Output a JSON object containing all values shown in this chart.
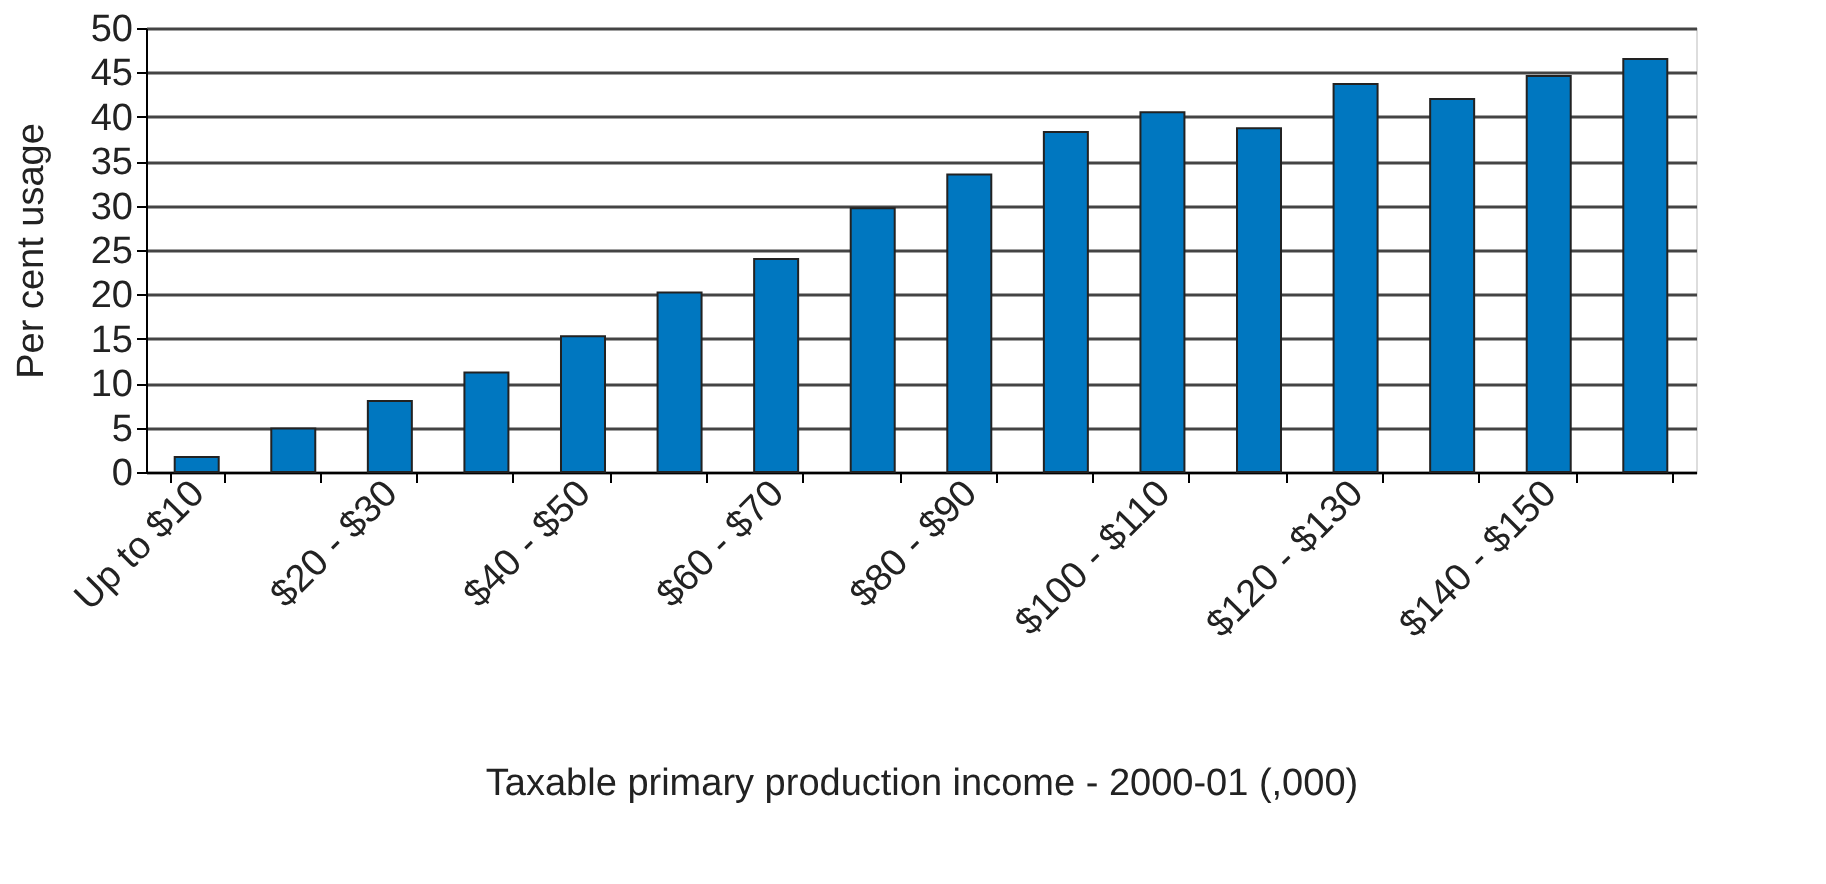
{
  "chart_data": {
    "type": "bar",
    "xlabel": "Taxable primary production income - 2000-01 (,000)",
    "ylabel": "Per cent usage",
    "categories": [
      "Up to $10",
      null,
      "$20 - $30",
      null,
      "$40 - $50",
      null,
      "$60 - $70",
      null,
      "$80 - $90",
      null,
      "$100 - $110",
      null,
      "$120 - $130",
      null,
      "$140 - $150",
      null
    ],
    "values": [
      1.7,
      4.9,
      8.0,
      11.2,
      15.3,
      20.2,
      24.0,
      29.7,
      33.5,
      38.3,
      40.5,
      38.7,
      43.7,
      42.0,
      44.6,
      46.5
    ],
    "color": "#0077c0",
    "ylim": [
      0,
      50
    ],
    "yticks": [
      0,
      5,
      10,
      15,
      20,
      25,
      30,
      35,
      40,
      45,
      50
    ],
    "grid": "y"
  }
}
